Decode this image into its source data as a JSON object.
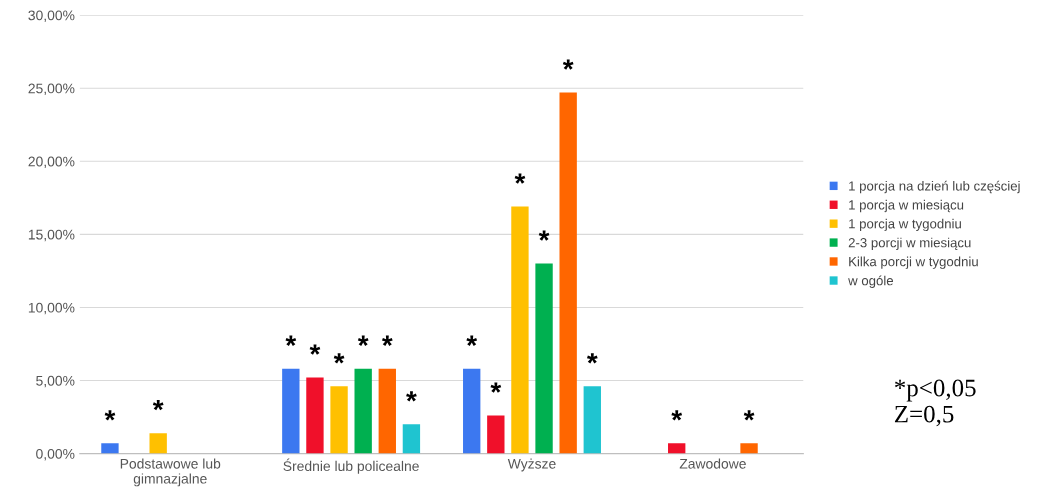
{
  "chart_data": {
    "type": "bar",
    "categories": [
      "Podstawowe lub\ngimnazjalne",
      "Średnie lub policealne",
      "Wyższe",
      "Zawodowe"
    ],
    "series": [
      {
        "name": "1 porcja na dzień lub częściej",
        "color": "#3c78f0",
        "values": [
          0.7,
          5.8,
          5.8,
          null
        ],
        "value_labels": [
          "*",
          "*",
          "*",
          null
        ]
      },
      {
        "name": "1 porcja w miesiącu",
        "color": "#f0102a",
        "values": [
          null,
          5.2,
          2.6,
          0.7
        ],
        "value_labels": [
          null,
          "*",
          "*",
          "*"
        ]
      },
      {
        "name": "1 porcja w tygodniu",
        "color": "#ffc000",
        "values": [
          1.4,
          4.6,
          16.9,
          null
        ],
        "value_labels": [
          "*",
          "*",
          "*",
          null
        ]
      },
      {
        "name": "2-3 porcji w miesiącu",
        "color": "#00b050",
        "values": [
          null,
          5.8,
          13.0,
          null
        ],
        "value_labels": [
          null,
          "*",
          "*",
          null
        ]
      },
      {
        "name": "Kilka porcji w tygodniu",
        "color": "#ff6600",
        "values": [
          null,
          5.8,
          24.7,
          0.7
        ],
        "value_labels": [
          null,
          "*",
          "*",
          "*"
        ]
      },
      {
        "name": "w ogóle",
        "color": "#1fc4d0",
        "values": [
          null,
          2.0,
          4.6,
          null
        ],
        "value_labels": [
          null,
          "*",
          "*",
          null
        ]
      }
    ],
    "ylim": [
      0,
      30
    ],
    "yticks": [
      {
        "value": 0,
        "label": "0,00%"
      },
      {
        "value": 5,
        "label": "5,00%"
      },
      {
        "value": 10,
        "label": "10,00%"
      },
      {
        "value": 15,
        "label": "15,00%"
      },
      {
        "value": 20,
        "label": "20,00%"
      },
      {
        "value": 25,
        "label": "25,00%"
      },
      {
        "value": 30,
        "label": "30,00%"
      }
    ],
    "grid": "y",
    "legend": "right",
    "annotations": [
      "*p<0,05\nZ=0,5"
    ]
  }
}
